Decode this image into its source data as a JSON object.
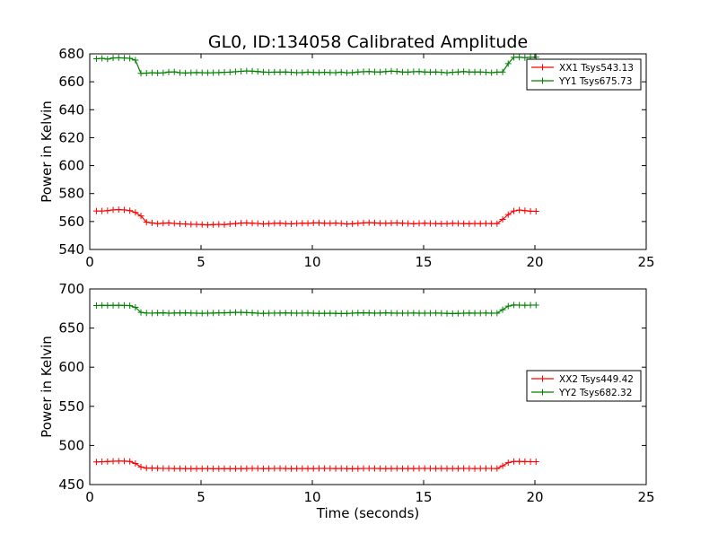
{
  "figure_title": "GL0, ID:134058 Calibrated Amplitude",
  "chart_data": [
    {
      "type": "line",
      "title": "GL0, ID:134058 Calibrated Amplitude",
      "xlabel": "",
      "ylabel": "Power in Kelvin",
      "xlim": [
        0,
        25
      ],
      "ylim": [
        540,
        680
      ],
      "xticks": [
        "0",
        "5",
        "10",
        "15",
        "20",
        "25"
      ],
      "yticks": [
        "540",
        "560",
        "580",
        "600",
        "620",
        "640",
        "660",
        "680"
      ],
      "legend_position": "top-right",
      "grid": false,
      "x_sampling": {
        "start": 0.3,
        "step": 0.25,
        "count": 80
      },
      "series": [
        {
          "name": "XX1 Tsys543.13",
          "color": "#ff0000",
          "marker": "+",
          "values": [
            567.5,
            567.5,
            567.8,
            568.3,
            568.5,
            568.3,
            567.8,
            566.5,
            564.0,
            559.5,
            559.0,
            558.5,
            558.8,
            559.0,
            558.6,
            558.3,
            558.2,
            558.0,
            558.0,
            557.8,
            557.6,
            557.8,
            558.0,
            557.8,
            558.2,
            558.5,
            558.9,
            559.0,
            558.8,
            558.6,
            558.2,
            558.5,
            558.7,
            558.8,
            558.5,
            558.3,
            558.6,
            558.8,
            558.7,
            559.0,
            559.0,
            558.8,
            558.7,
            558.9,
            558.6,
            558.2,
            558.4,
            558.7,
            559.0,
            559.2,
            559.0,
            558.8,
            558.7,
            558.9,
            559.0,
            558.8,
            558.6,
            558.4,
            558.6,
            558.8,
            558.6,
            558.5,
            558.4,
            558.5,
            558.7,
            558.6,
            558.5,
            558.4,
            558.6,
            558.5,
            558.6,
            558.5,
            558.5,
            561.5,
            565.0,
            567.5,
            568.2,
            567.8,
            567.4,
            567.3
          ]
        },
        {
          "name": "YY1 Tsys675.73",
          "color": "#008000",
          "marker": "+",
          "values": [
            676.5,
            676.8,
            676.2,
            677.0,
            677.2,
            677.0,
            676.8,
            675.5,
            666.0,
            666.2,
            666.5,
            666.3,
            666.4,
            667.0,
            667.1,
            666.5,
            666.3,
            666.5,
            666.6,
            666.5,
            666.4,
            666.5,
            666.6,
            666.8,
            666.9,
            667.2,
            667.5,
            667.8,
            667.6,
            667.3,
            667.0,
            666.8,
            666.9,
            666.9,
            667.0,
            666.8,
            666.5,
            666.6,
            666.9,
            666.7,
            666.6,
            666.8,
            666.6,
            666.5,
            666.9,
            666.4,
            666.6,
            667.0,
            667.2,
            667.3,
            667.1,
            667.0,
            667.3,
            667.6,
            667.4,
            667.0,
            666.9,
            667.2,
            667.3,
            667.0,
            666.9,
            667.0,
            666.8,
            666.4,
            666.8,
            667.0,
            667.3,
            667.0,
            667.0,
            667.0,
            666.8,
            666.5,
            666.9,
            667.0,
            673.0,
            677.5,
            677.6,
            677.3,
            677.5,
            677.6
          ]
        }
      ]
    },
    {
      "type": "line",
      "title": "",
      "xlabel": "Time (seconds)",
      "ylabel": "Power in Kelvin",
      "xlim": [
        0,
        25
      ],
      "ylim": [
        450,
        700
      ],
      "xticks": [
        "0",
        "5",
        "10",
        "15",
        "20",
        "25"
      ],
      "yticks": [
        "450",
        "500",
        "550",
        "600",
        "650",
        "700"
      ],
      "legend_position": "center-right",
      "grid": false,
      "x_sampling": {
        "start": 0.3,
        "step": 0.25,
        "count": 80
      },
      "series": [
        {
          "name": "XX2 Tsys449.42",
          "color": "#ff0000",
          "marker": "+",
          "values": [
            479.0,
            479.2,
            479.5,
            479.8,
            480.0,
            480.0,
            479.5,
            477.0,
            472.5,
            471.0,
            471.0,
            470.8,
            470.6,
            470.7,
            470.5,
            470.5,
            470.4,
            470.3,
            470.4,
            470.4,
            470.5,
            470.3,
            470.3,
            470.4,
            470.3,
            470.3,
            470.4,
            470.5,
            470.7,
            470.6,
            470.4,
            470.5,
            470.6,
            470.7,
            470.5,
            470.4,
            470.5,
            470.6,
            470.5,
            470.5,
            470.6,
            470.7,
            470.6,
            470.5,
            470.6,
            470.4,
            470.3,
            470.4,
            470.6,
            470.6,
            470.7,
            470.5,
            470.4,
            470.5,
            470.6,
            470.5,
            470.6,
            470.5,
            470.6,
            470.7,
            470.6,
            470.5,
            470.6,
            470.5,
            470.6,
            470.5,
            470.7,
            470.6,
            470.5,
            470.6,
            470.7,
            470.6,
            470.5,
            474.0,
            478.0,
            479.5,
            479.6,
            479.4,
            479.3,
            479.2
          ]
        },
        {
          "name": "YY2 Tsys682.32",
          "color": "#008000",
          "marker": "+",
          "values": [
            678.8,
            679.0,
            678.9,
            679.0,
            679.1,
            679.0,
            678.7,
            676.5,
            670.0,
            669.2,
            669.1,
            669.3,
            669.5,
            669.0,
            669.2,
            669.3,
            669.4,
            669.2,
            669.0,
            668.9,
            669.0,
            669.2,
            669.4,
            669.5,
            669.8,
            670.0,
            670.0,
            669.8,
            669.5,
            669.0,
            668.8,
            669.0,
            669.1,
            669.2,
            669.3,
            669.2,
            669.0,
            669.1,
            669.2,
            669.0,
            668.8,
            668.9,
            669.0,
            668.8,
            668.6,
            668.7,
            669.0,
            669.3,
            669.5,
            669.3,
            669.0,
            669.2,
            669.4,
            669.2,
            669.0,
            669.0,
            669.1,
            669.2,
            669.0,
            669.0,
            669.1,
            669.2,
            669.0,
            668.8,
            668.6,
            668.8,
            669.0,
            669.2,
            669.0,
            669.1,
            669.2,
            669.0,
            669.1,
            673.5,
            678.0,
            679.5,
            679.3,
            679.2,
            679.3,
            679.4
          ]
        }
      ]
    }
  ]
}
